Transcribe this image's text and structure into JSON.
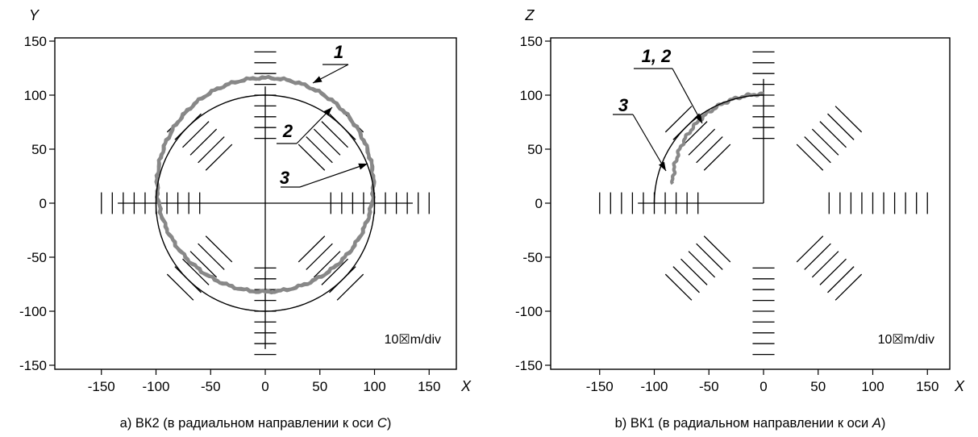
{
  "chart_data": [
    {
      "type": "scatter",
      "panel": "a",
      "caption_prefix": "a) ВК2 (в радиальном направлении к оси ",
      "caption_axis": "C",
      "caption_suffix": ")",
      "xlabel": "X",
      "ylabel": "Y",
      "xlim": [
        -190,
        170
      ],
      "ylim": [
        -150,
        150
      ],
      "x_ticks": [
        "-150",
        "-100",
        "-50",
        "0",
        "50",
        "100",
        "150"
      ],
      "y_ticks": [
        "150",
        "100",
        "50",
        "0",
        "-50",
        "-100",
        "-150"
      ],
      "unit_label": "10☒m/div",
      "callouts": [
        "1",
        "2",
        "3"
      ],
      "reference_circle": {
        "center": [
          0,
          0
        ],
        "radius": 100
      },
      "series": [
        {
          "name": "1",
          "color": "#888888",
          "center": [
            0,
            17
          ],
          "radius": 99,
          "arc_degrees": [
            0,
            360
          ]
        },
        {
          "name": "2",
          "color": "#888888",
          "center": [
            0,
            17
          ],
          "radius": 99,
          "arc_degrees": [
            0,
            360
          ]
        },
        {
          "name": "3",
          "color": "#000000",
          "center": [
            0,
            0
          ],
          "radius": 100,
          "arc_degrees": [
            0,
            360
          ]
        }
      ]
    },
    {
      "type": "scatter",
      "panel": "b",
      "caption_prefix": "b) ВК1 (в радиальном направлении к оси ",
      "caption_axis": "A",
      "caption_suffix": ")",
      "xlabel": "X",
      "ylabel": "Z",
      "xlim": [
        -190,
        170
      ],
      "ylim": [
        -150,
        150
      ],
      "x_ticks": [
        "-150",
        "-100",
        "-50",
        "0",
        "50",
        "100",
        "150"
      ],
      "y_ticks": [
        "150",
        "100",
        "50",
        "0",
        "-50",
        "-100",
        "-150"
      ],
      "unit_label": "10☒m/div",
      "callouts": [
        "1, 2",
        "3"
      ],
      "reference_circle": {
        "center": [
          0,
          0
        ],
        "radius": 100
      },
      "series": [
        {
          "name": "1, 2",
          "color": "#888888",
          "center": [
            0,
            18
          ],
          "radius": 83,
          "arc_degrees": [
            90,
            180
          ]
        },
        {
          "name": "3",
          "color": "#000000",
          "center": [
            0,
            0
          ],
          "radius": 100,
          "arc_degrees": [
            90,
            180
          ]
        }
      ]
    }
  ]
}
